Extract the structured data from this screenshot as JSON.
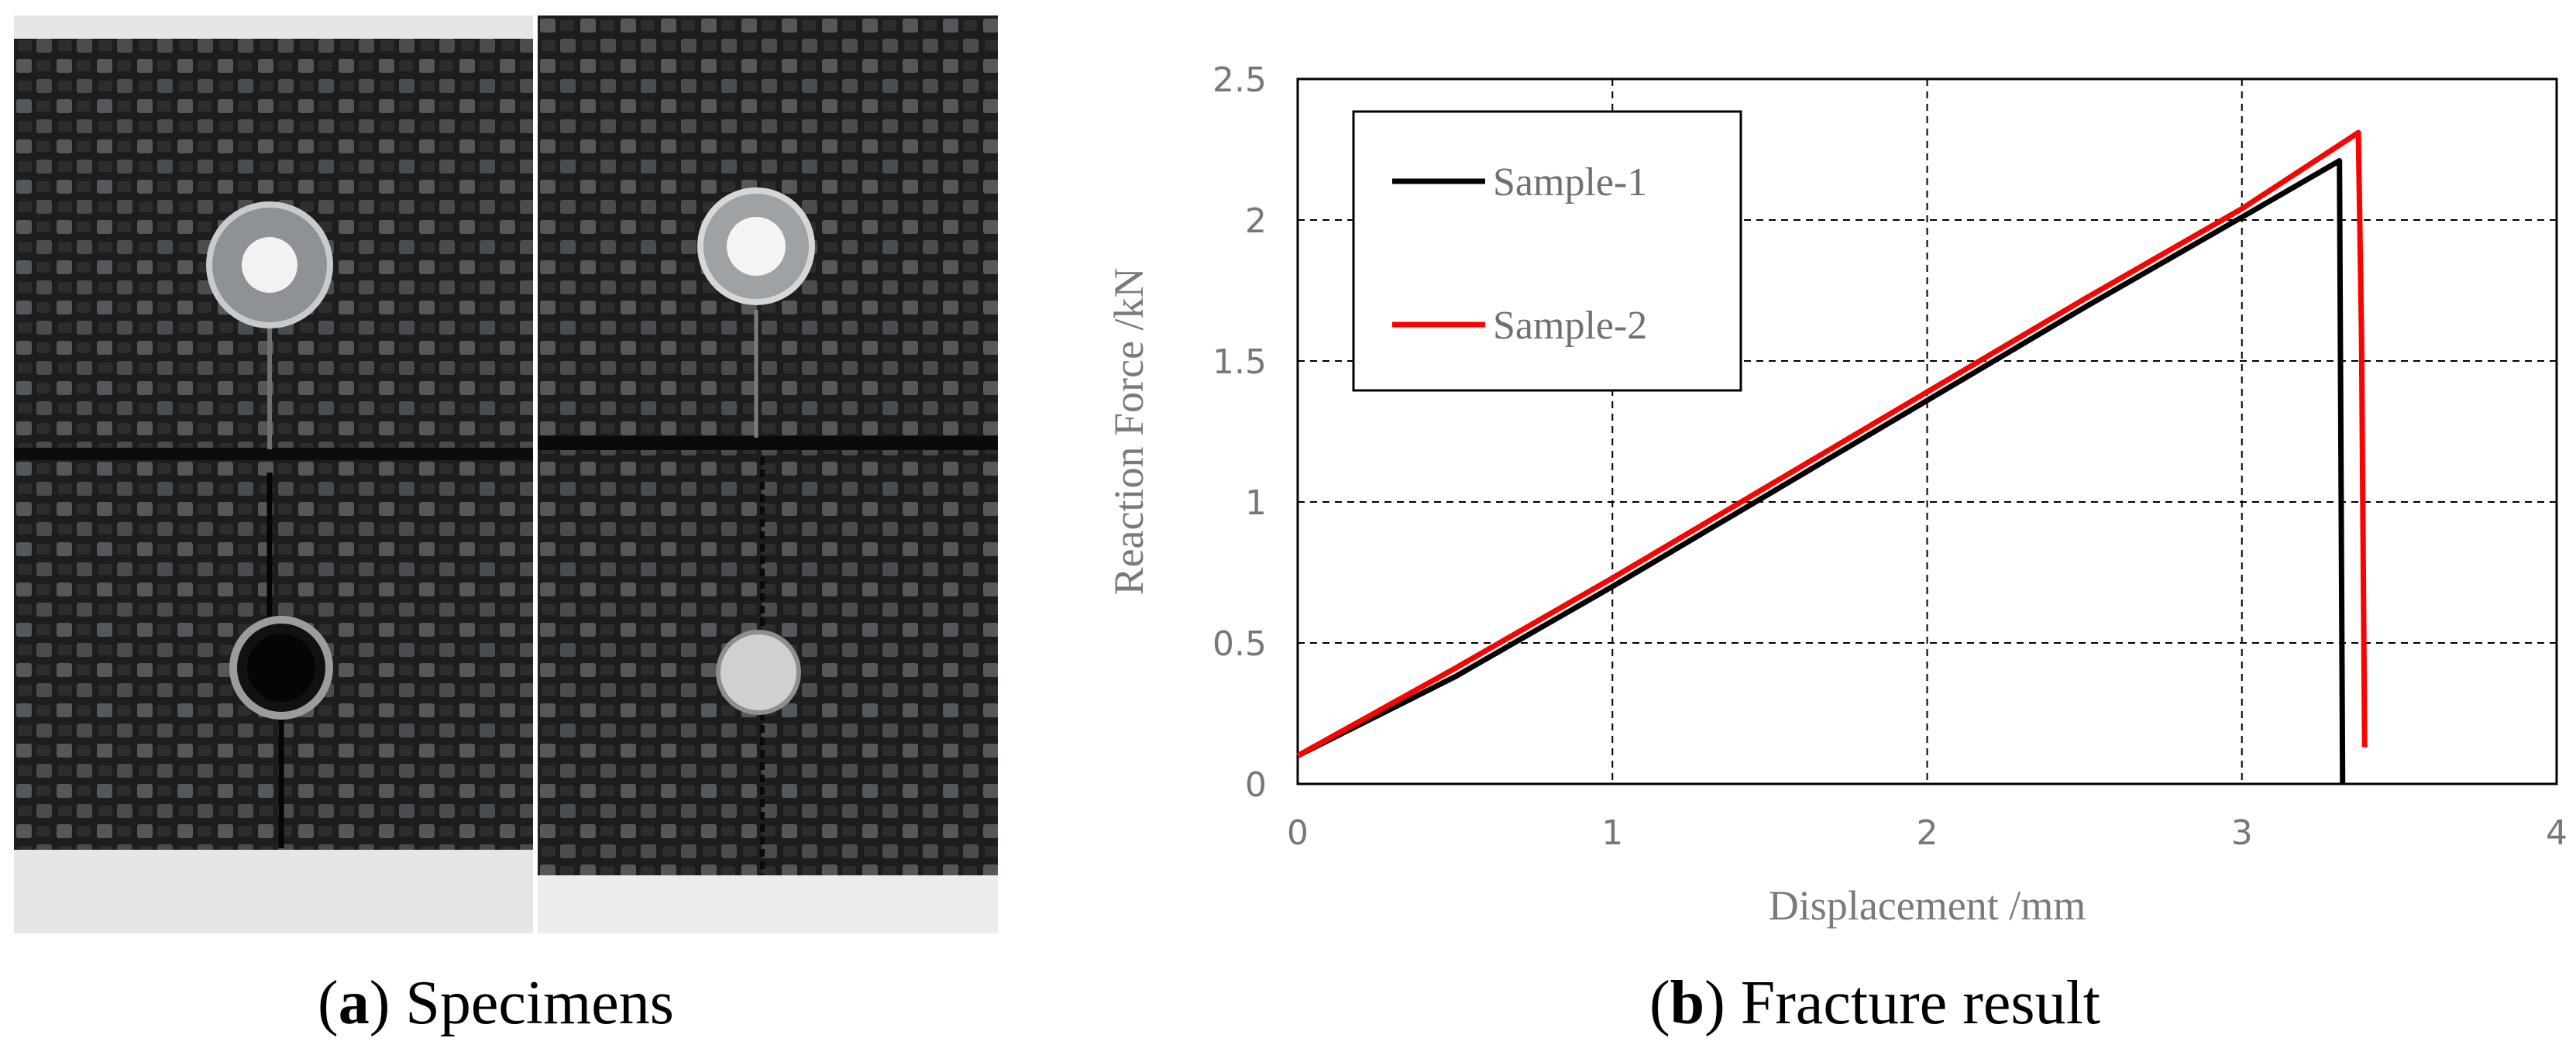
{
  "captions": {
    "a": {
      "letter": "a",
      "text": "Specimens"
    },
    "b": {
      "letter": "b",
      "text": "Fracture result"
    }
  },
  "chart_data": {
    "type": "line",
    "xlabel": "Displacement /mm",
    "ylabel": "Reaction Force /kN",
    "xlim": [
      0,
      4
    ],
    "ylim": [
      0,
      2.5
    ],
    "xticks": [
      0,
      1,
      2,
      3,
      4
    ],
    "yticks": [
      0,
      0.5,
      1,
      1.5,
      2,
      2.5
    ],
    "grid": true,
    "legend_position": "top-left",
    "series": [
      {
        "name": "Sample-1",
        "color": "#000000",
        "x": [
          0,
          0.5,
          1.0,
          1.5,
          2.0,
          2.5,
          3.0,
          3.31,
          3.32
        ],
        "y": [
          0.1,
          0.38,
          0.7,
          1.03,
          1.36,
          1.69,
          2.01,
          2.21,
          0.0
        ]
      },
      {
        "name": "Sample-2",
        "color": "#ff0000",
        "x": [
          0,
          0.5,
          1.0,
          1.5,
          2.0,
          2.5,
          3.0,
          3.37,
          3.38,
          3.39
        ],
        "y": [
          0.1,
          0.41,
          0.73,
          1.06,
          1.39,
          1.72,
          2.04,
          2.31,
          1.6,
          0.13
        ]
      }
    ]
  }
}
